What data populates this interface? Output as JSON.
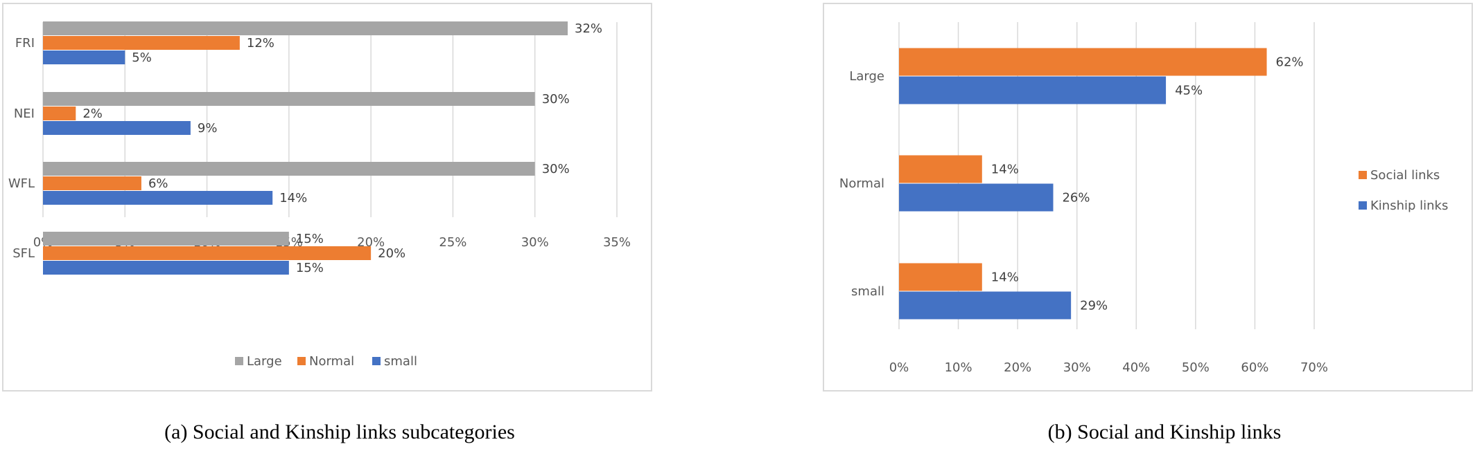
{
  "captions": {
    "a": "(a) Social and Kinship links subcategories",
    "b": "(b) Social and Kinship links"
  },
  "colors": {
    "large": "#a5a5a5",
    "normal": "#ed7d31",
    "small": "#4472c4",
    "social": "#ed7d31",
    "kinship": "#4472c4",
    "grid": "#d9d9d9",
    "text": "#595959"
  },
  "chart_data": [
    {
      "type": "bar",
      "orientation": "horizontal",
      "categories": [
        "FRI",
        "NEI",
        "WFL",
        "SFL"
      ],
      "series": [
        {
          "name": "Large",
          "values": [
            32,
            30,
            30,
            15
          ]
        },
        {
          "name": "Normal",
          "values": [
            12,
            2,
            6,
            20
          ]
        },
        {
          "name": "small",
          "values": [
            5,
            9,
            14,
            15
          ]
        }
      ],
      "value_unit": "%",
      "xlim": [
        0,
        35
      ],
      "xticks": [
        "0%",
        "5%",
        "10%",
        "15%",
        "20%",
        "25%",
        "30%",
        "35%"
      ],
      "grid": true,
      "legend_position": "bottom"
    },
    {
      "type": "bar",
      "orientation": "horizontal",
      "categories": [
        "Large",
        "Normal",
        "small"
      ],
      "series": [
        {
          "name": "Social links",
          "values": [
            62,
            14,
            14
          ]
        },
        {
          "name": "Kinship links",
          "values": [
            45,
            26,
            29
          ]
        }
      ],
      "value_unit": "%",
      "xlim": [
        0,
        70
      ],
      "xticks": [
        "0%",
        "10%",
        "20%",
        "30%",
        "40%",
        "50%",
        "60%",
        "70%"
      ],
      "grid": true,
      "legend_position": "right"
    }
  ]
}
